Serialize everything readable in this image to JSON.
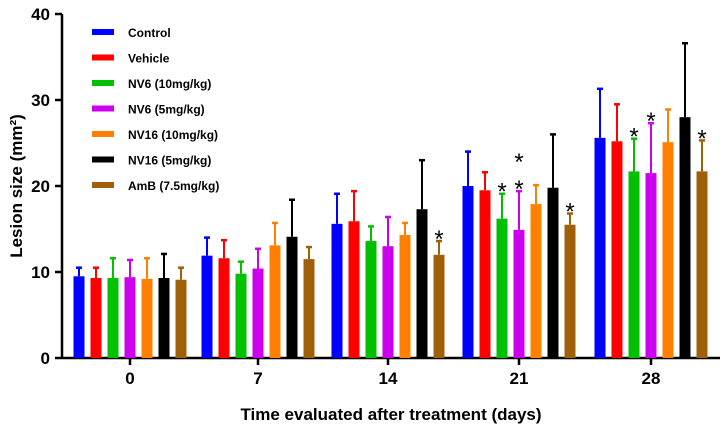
{
  "chart_data": {
    "type": "bar",
    "title": "",
    "xlabel": "Time evaluated after treatment (days)",
    "ylabel": "Lesion size (mm²)",
    "ylim": [
      0,
      40
    ],
    "yticks": [
      "0",
      "10",
      "20",
      "30",
      "40"
    ],
    "categories": [
      "0",
      "7",
      "14",
      "21",
      "28"
    ],
    "legend_position": "top-left",
    "series": [
      {
        "name": "Control",
        "color": "#0000ff",
        "values": [
          9.5,
          11.9,
          15.6,
          20.0,
          25.6
        ],
        "error_top": [
          10.5,
          14.0,
          19.1,
          24.0,
          31.3
        ],
        "sig": [
          "",
          "",
          "",
          "",
          ""
        ]
      },
      {
        "name": "Vehicle",
        "color": "#ff0000",
        "values": [
          9.3,
          11.6,
          15.9,
          19.5,
          25.2
        ],
        "error_top": [
          10.5,
          13.7,
          19.4,
          21.6,
          29.5
        ],
        "sig": [
          "",
          "",
          "",
          "",
          ""
        ]
      },
      {
        "name": "NV6 (10mg/kg)",
        "color": "#00c000",
        "values": [
          9.3,
          9.8,
          13.6,
          16.2,
          21.7
        ],
        "error_top": [
          11.6,
          11.2,
          15.3,
          19.1,
          25.5
        ],
        "sig": [
          "",
          "",
          "",
          "*",
          "*"
        ]
      },
      {
        "name": "NV6 (5mg/kg)",
        "color": "#cc00ee",
        "values": [
          9.4,
          10.4,
          13.0,
          14.9,
          21.5
        ],
        "error_top": [
          11.4,
          12.7,
          16.4,
          19.4,
          27.3
        ],
        "sig": [
          "",
          "",
          "",
          "**",
          "*"
        ]
      },
      {
        "name": "NV16 (10mg/kg)",
        "color": "#ff8000",
        "values": [
          9.2,
          13.1,
          14.3,
          17.9,
          25.1
        ],
        "error_top": [
          11.6,
          15.7,
          15.7,
          20.1,
          28.9
        ],
        "sig": [
          "",
          "",
          "",
          "",
          ""
        ]
      },
      {
        "name": "NV16 (5mg/kg)",
        "color": "#000000",
        "values": [
          9.3,
          14.1,
          17.3,
          19.8,
          28.0
        ],
        "error_top": [
          12.1,
          18.4,
          23.0,
          26.0,
          36.6
        ],
        "sig": [
          "",
          "",
          "",
          "",
          ""
        ]
      },
      {
        "name": "AmB (7.5mg/kg)",
        "color": "#a0600a",
        "values": [
          9.1,
          11.5,
          12.0,
          15.5,
          21.7
        ],
        "error_top": [
          10.5,
          12.9,
          13.6,
          16.8,
          25.3
        ],
        "sig": [
          "",
          "",
          "*",
          "*",
          "*"
        ]
      }
    ]
  }
}
